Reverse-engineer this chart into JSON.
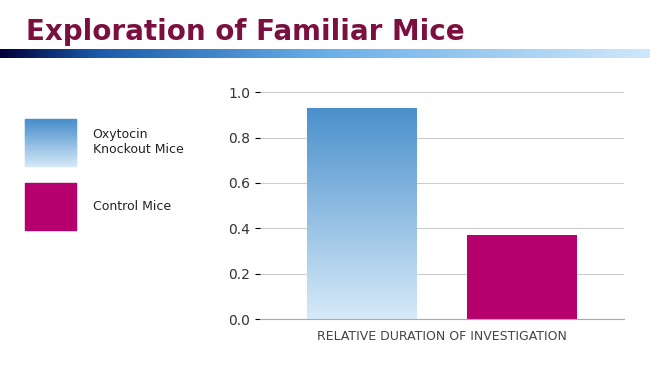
{
  "title": "Exploration of Familiar Mice",
  "title_color": "#7B1040",
  "title_fontsize": 20,
  "xlabel": "RELATIVE DURATION OF INVESTIGATION",
  "xlabel_fontsize": 9,
  "xlabel_color": "#444444",
  "bar_values": [
    0.93,
    0.37
  ],
  "bar_gradient_top": "#4a8fcb",
  "bar_gradient_bottom": "#d6eaf8",
  "control_color": "#b5006e",
  "ylim": [
    0.0,
    1.05
  ],
  "yticks": [
    0.0,
    0.2,
    0.4,
    0.6,
    0.8,
    1.0
  ],
  "grid_color": "#cccccc",
  "background_color": "#ffffff",
  "figsize": [
    6.5,
    3.67
  ],
  "dpi": 100
}
